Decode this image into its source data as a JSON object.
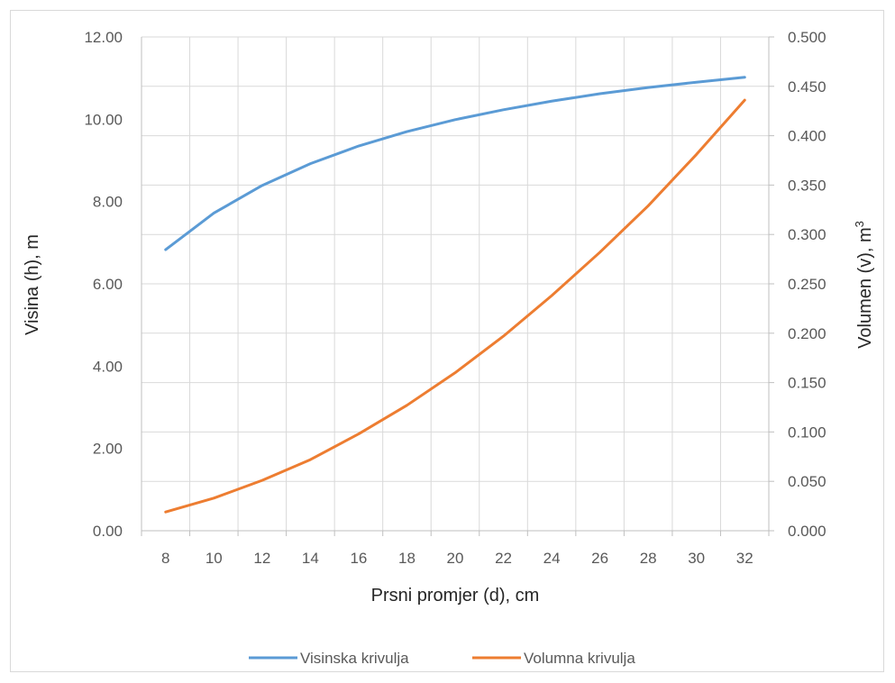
{
  "chart_data": {
    "type": "line",
    "title": "",
    "x": [
      8,
      10,
      12,
      14,
      16,
      18,
      20,
      22,
      24,
      26,
      28,
      30,
      32
    ],
    "xlabel": "Prsni promjer (d), cm",
    "ylabel": "Visina (h), m",
    "y2label": "Volumen (v), m",
    "y2label_sup": "3",
    "ylim": [
      0,
      12
    ],
    "y2lim": [
      0,
      0.5
    ],
    "yticks": [
      "0.00",
      "2.00",
      "4.00",
      "6.00",
      "8.00",
      "10.00",
      "12.00"
    ],
    "y2ticks": [
      "0.000",
      "0.050",
      "0.100",
      "0.150",
      "0.200",
      "0.250",
      "0.300",
      "0.350",
      "0.400",
      "0.450",
      "0.500"
    ],
    "grid": true,
    "legend_position": "bottom",
    "series": [
      {
        "name": "Visinska krivulja",
        "axis": "left",
        "color": "#5b9bd5",
        "values": [
          6.83,
          7.72,
          8.39,
          8.92,
          9.35,
          9.7,
          9.99,
          10.23,
          10.44,
          10.62,
          10.77,
          10.9,
          11.02
        ]
      },
      {
        "name": "Volumna krivulja",
        "axis": "right",
        "color": "#ed7d31",
        "values": [
          0.019,
          0.033,
          0.051,
          0.072,
          0.098,
          0.127,
          0.16,
          0.197,
          0.238,
          0.282,
          0.329,
          0.381,
          0.436
        ]
      }
    ]
  }
}
